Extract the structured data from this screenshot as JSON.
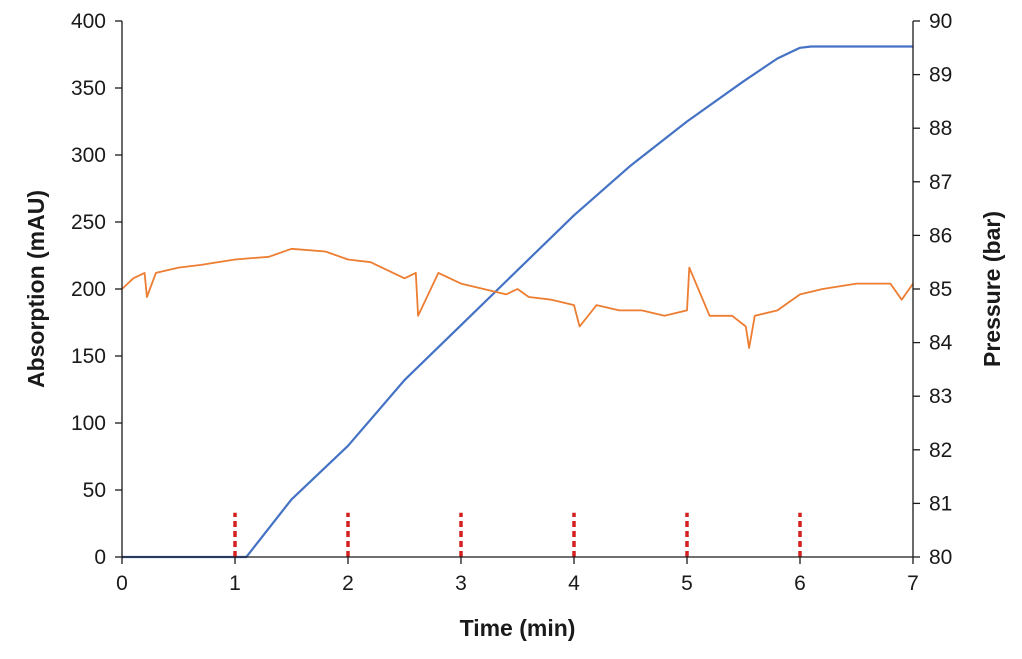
{
  "chart_data": {
    "type": "line",
    "xlabel": "Time (min)",
    "ylabel_left": "Absorption (mAU)",
    "ylabel_right": "Pressure (bar)",
    "xlim": [
      0,
      7
    ],
    "ylim_left": [
      0,
      400
    ],
    "ylim_right": [
      80,
      90
    ],
    "x_ticks": [
      "0",
      "1",
      "2",
      "3",
      "4",
      "5",
      "6",
      "7"
    ],
    "y_left_ticks": [
      "0",
      "50",
      "100",
      "150",
      "200",
      "250",
      "300",
      "350",
      "400"
    ],
    "y_right_ticks": [
      "80",
      "81",
      "82",
      "83",
      "84",
      "85",
      "86",
      "87",
      "88",
      "89",
      "90"
    ],
    "grid": false,
    "legend": "none",
    "series": [
      {
        "axis": "left",
        "color": "#4472C4",
        "x": [
          0,
          1.0,
          1.1,
          1.5,
          2.0,
          2.5,
          3.0,
          3.5,
          4.0,
          4.5,
          5.0,
          5.5,
          5.8,
          6.0,
          6.1,
          7.0
        ],
        "y": [
          0,
          0,
          0,
          43,
          83,
          132,
          173,
          214,
          255,
          292,
          325,
          355,
          372,
          380,
          381,
          381
        ]
      },
      {
        "axis": "right",
        "color": "#ED7D31",
        "x": [
          0,
          0.1,
          0.2,
          0.22,
          0.3,
          0.5,
          0.7,
          1.0,
          1.3,
          1.5,
          1.8,
          2.0,
          2.2,
          2.4,
          2.5,
          2.6,
          2.62,
          2.8,
          3.0,
          3.2,
          3.4,
          3.5,
          3.6,
          3.8,
          4.0,
          4.05,
          4.2,
          4.4,
          4.6,
          4.8,
          5.0,
          5.02,
          5.2,
          5.4,
          5.52,
          5.55,
          5.6,
          5.8,
          6.0,
          6.2,
          6.5,
          6.8,
          6.9,
          7.0
        ],
        "y": [
          85.0,
          85.2,
          85.3,
          84.85,
          85.3,
          85.4,
          85.45,
          85.55,
          85.6,
          85.75,
          85.7,
          85.55,
          85.5,
          85.3,
          85.2,
          85.3,
          84.5,
          85.3,
          85.1,
          85.0,
          84.9,
          85.0,
          84.85,
          84.8,
          84.7,
          84.3,
          84.7,
          84.6,
          84.6,
          84.5,
          84.6,
          85.4,
          84.5,
          84.5,
          84.3,
          83.9,
          84.5,
          84.6,
          84.9,
          85.0,
          85.1,
          85.1,
          84.8,
          85.1
        ]
      }
    ],
    "markers": {
      "color": "#D42020",
      "x": [
        1,
        2,
        3,
        4,
        5,
        6
      ],
      "y_range_left": [
        0,
        33
      ]
    }
  }
}
